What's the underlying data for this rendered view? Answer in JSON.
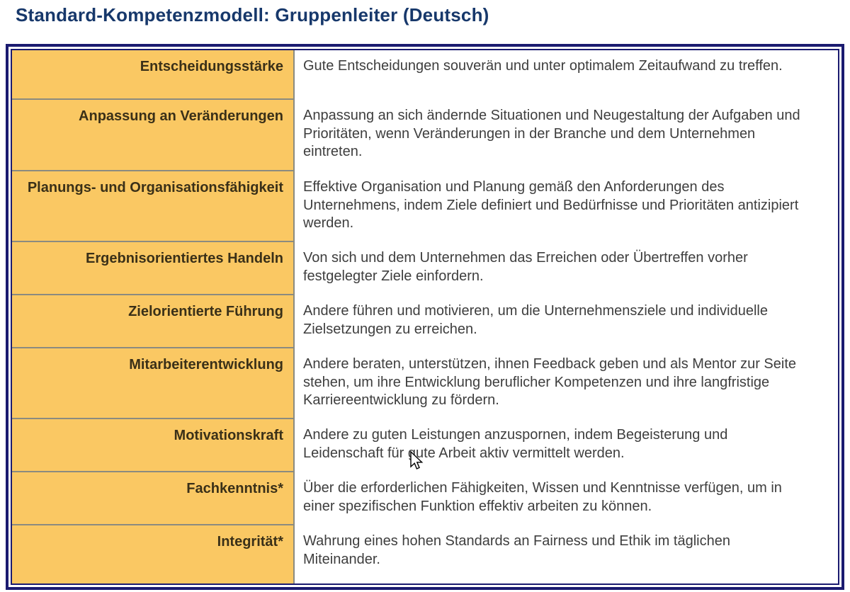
{
  "page_title": "Standard-Kompetenzmodell: Gruppenleiter (Deutsch)",
  "table": {
    "left_column_role": "Kompetenz",
    "right_column_role": "Beschreibung",
    "rows": [
      {
        "competency": "Entscheidungsstärke",
        "description": "Gute Entscheidungen souverän und unter optimalem Zeitaufwand zu treffen."
      },
      {
        "competency": "Anpassung an Veränderungen",
        "description": "Anpassung an sich ändernde Situationen und Neugestaltung der Aufgaben und Prioritäten, wenn Veränderungen in der Branche und dem Unternehmen eintreten."
      },
      {
        "competency": "Planungs- und Organisationsfähigkeit",
        "description": "Effektive Organisation und Planung gemäß den Anforderungen des Unternehmens, indem Ziele definiert und Bedürfnisse und Prioritäten antizipiert werden."
      },
      {
        "competency": "Ergebnisorientiertes Handeln",
        "description": "Von sich und dem Unternehmen das Erreichen oder Übertreffen vorher festgelegter Ziele einfordern."
      },
      {
        "competency": "Zielorientierte Führung",
        "description": "Andere führen und motivieren, um die Unternehmensziele und individuelle Zielsetzungen zu erreichen."
      },
      {
        "competency": "Mitarbeiterentwicklung",
        "description": "Andere beraten, unterstützen, ihnen Feedback geben und als Mentor zur Seite stehen, um ihre Entwicklung beruflicher Kompetenzen und ihre langfristige Karriereentwicklung zu fördern."
      },
      {
        "competency": "Motivationskraft",
        "description": "Andere zu guten Leistungen anzuspornen, indem Begeisterung und Leidenschaft für gute Arbeit aktiv vermittelt werden."
      },
      {
        "competency": "Fachkenntnis*",
        "description": "Über die erforderlichen Fähigkeiten, Wissen und Kenntnisse verfügen, um in einer spezifischen Funktion effektiv arbeiten zu können."
      },
      {
        "competency": "Integrität*",
        "description": "Wahrung eines hohen Standards an Fairness und Ethik im täglichen Miteinander."
      }
    ]
  },
  "cursor": {
    "icon": "arrow-pointer-icon"
  },
  "colors": {
    "border_navy": "#1b1b70",
    "title_navy": "#17386b",
    "cell_orange": "#fac863",
    "separator_gray": "#8b8b80",
    "label_text": "#3a3018",
    "body_text": "#3e3e3e"
  }
}
